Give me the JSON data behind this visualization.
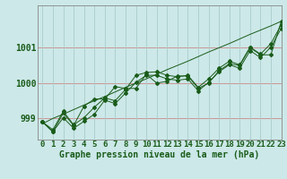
{
  "title": "Graphe pression niveau de la mer (hPa)",
  "bg_color": "#cce8e8",
  "line_color": "#1a5c1a",
  "grid_color_v": "#aacccc",
  "grid_color_h": "#cc8888",
  "xlim": [
    -0.5,
    23
  ],
  "ylim": [
    998.4,
    1002.2
  ],
  "yticks": [
    999,
    1000,
    1001
  ],
  "xticks": [
    0,
    1,
    2,
    3,
    4,
    5,
    6,
    7,
    8,
    9,
    10,
    11,
    12,
    13,
    14,
    15,
    16,
    17,
    18,
    19,
    20,
    21,
    22,
    23
  ],
  "trend_line": [
    998.85,
    999.0,
    999.12,
    999.25,
    999.38,
    999.5,
    999.62,
    999.75,
    999.88,
    1000.0,
    1000.12,
    1000.25,
    1000.38,
    1000.5,
    1000.62,
    1000.75,
    1000.88,
    1001.0,
    1001.12,
    1001.25,
    1001.38,
    1001.5,
    1001.62,
    1001.75
  ],
  "series1": [
    998.9,
    998.62,
    999.15,
    998.8,
    999.35,
    999.55,
    999.55,
    999.9,
    999.85,
    999.85,
    1000.25,
    1000.0,
    1000.05,
    1000.2,
    1000.2,
    999.85,
    1000.0,
    1000.35,
    1000.55,
    1000.5,
    1001.0,
    1000.8,
    1000.8,
    1001.75
  ],
  "series2": [
    998.9,
    998.68,
    999.2,
    998.82,
    999.02,
    999.32,
    999.58,
    999.5,
    999.82,
    1000.22,
    1000.3,
    1000.32,
    1000.22,
    1000.18,
    1000.22,
    999.88,
    1000.12,
    1000.42,
    1000.62,
    1000.52,
    1001.02,
    1000.82,
    1001.12,
    1001.65
  ],
  "series3": [
    998.9,
    998.62,
    999.02,
    998.72,
    998.92,
    999.12,
    999.52,
    999.42,
    999.72,
    1000.02,
    1000.22,
    1000.22,
    1000.12,
    1000.08,
    1000.12,
    999.78,
    1000.02,
    1000.32,
    1000.52,
    1000.42,
    1000.92,
    1000.72,
    1001.02,
    1001.55
  ],
  "xlabel_fontsize": 6.5,
  "ylabel_fontsize": 7,
  "title_fontsize": 7
}
